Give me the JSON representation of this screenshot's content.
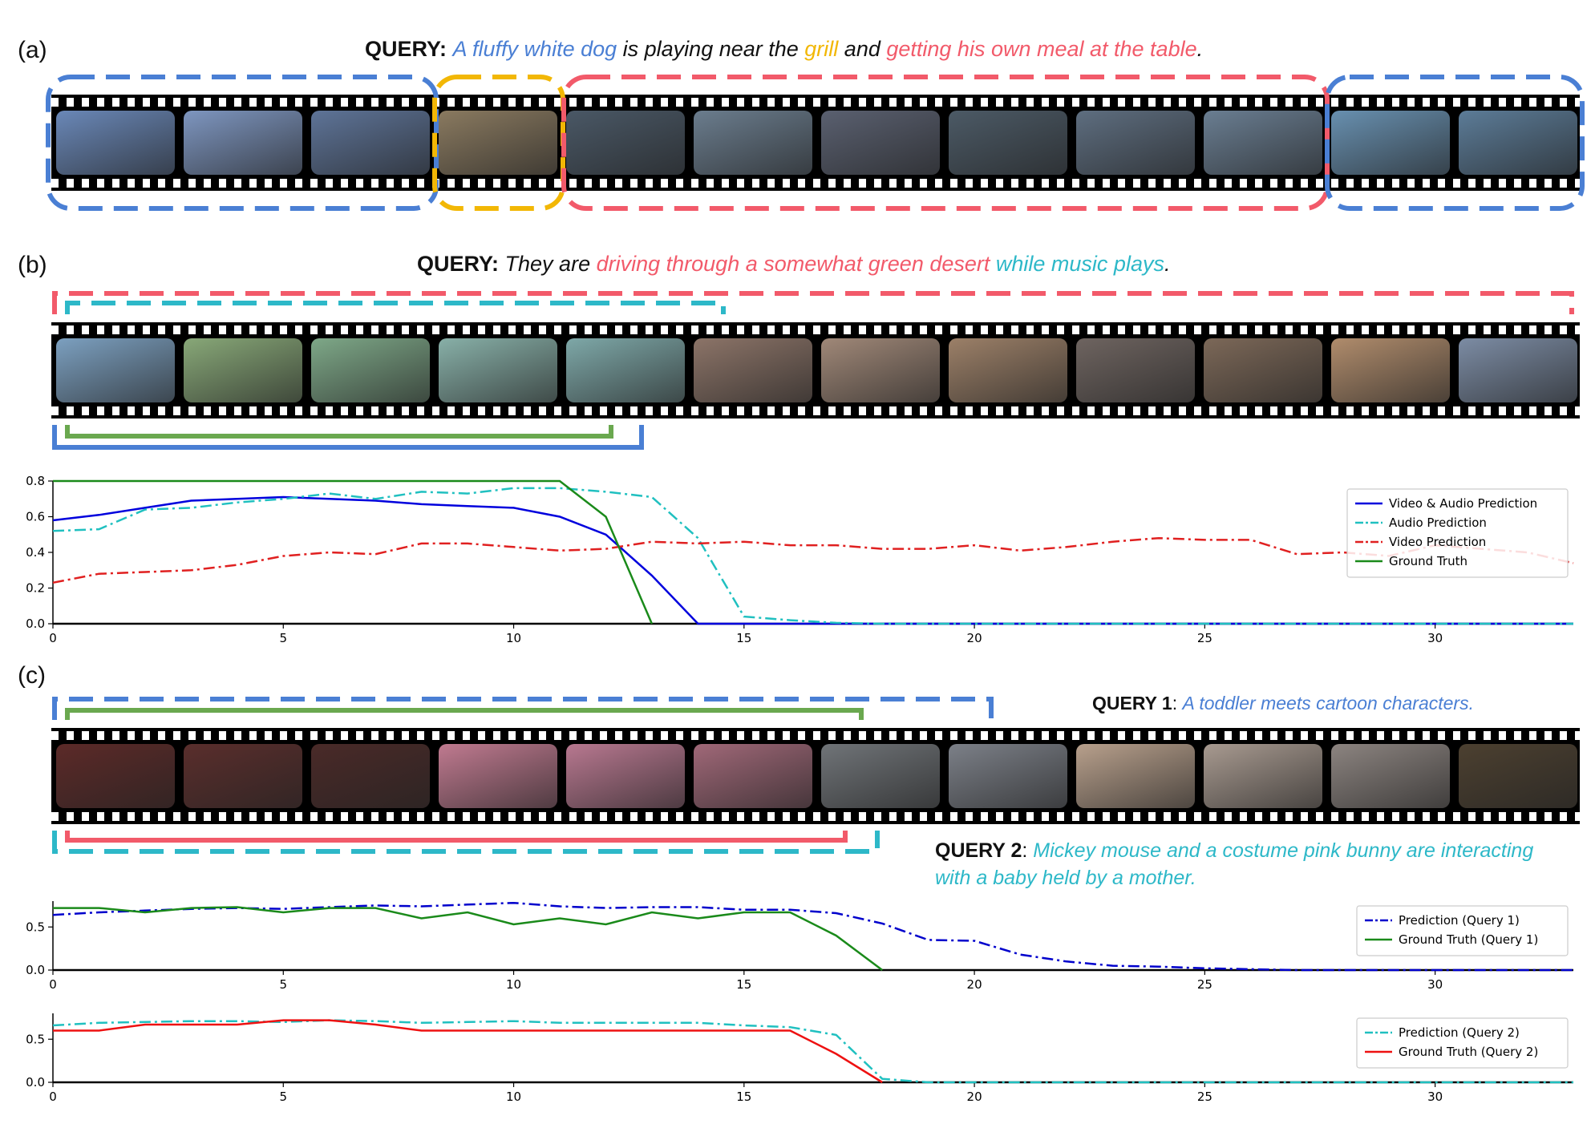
{
  "panels": {
    "a": {
      "label": "(a)",
      "query_prefix": "QUERY:",
      "query_parts": [
        {
          "text": "A fluffy white dog",
          "color": "#4a7fd4"
        },
        {
          "text": " is playing near the ",
          "color": "#111111"
        },
        {
          "text": "grill",
          "color": "#f2b705"
        },
        {
          "text": " and ",
          "color": "#111111"
        },
        {
          "text": "getting his own meal at the table",
          "color": "#f25a6a"
        },
        {
          "text": ".",
          "color": "#111111"
        }
      ]
    },
    "b": {
      "label": "(b)",
      "query_prefix": "QUERY:",
      "query_parts": [
        {
          "text": "They are ",
          "color": "#111111"
        },
        {
          "text": "driving through a somewhat green desert",
          "color": "#f25a6a"
        },
        {
          "text": " while music plays",
          "color": "#2db8c8"
        },
        {
          "text": ".",
          "color": "#111111"
        }
      ]
    },
    "c": {
      "label": "(c)",
      "query1_prefix": "QUERY 1",
      "query1_text": ": ",
      "query1_body": "A toddler meets cartoon characters.",
      "query2_prefix": "QUERY 2",
      "query2_text": ": ",
      "query2_line1": "Mickey mouse and a costume pink bunny are interacting",
      "query2_line2": "with a baby held by a mother."
    }
  },
  "colors": {
    "blue": "#4a7fd4",
    "yellow": "#f2b705",
    "red": "#f25a6a",
    "cyan": "#2db8c8",
    "green": "#6aa84f"
  },
  "frames": {
    "a": [
      "#6a88b8",
      "#7e96c0",
      "#5e7498",
      "#8a7a60",
      "#4a5866",
      "#6b7d8e",
      "#5a6070",
      "#4c5a66",
      "#5e6e80",
      "#6a7e92",
      "#6890b0",
      "#5c7c98"
    ],
    "b": [
      "#7ca0c0",
      "#88a878",
      "#7ea888",
      "#88b0a8",
      "#7ea8a8",
      "#8c7468",
      "#a08878",
      "#9c8068",
      "#6e6460",
      "#7c6858",
      "#b08c6c",
      "#7c8ca4"
    ],
    "c": [
      "#5c2a28",
      "#5a2e2c",
      "#4a2a28",
      "#c07a90",
      "#b87890",
      "#a06878",
      "#707478",
      "#7c8088",
      "#b8a08c",
      "#a89a90",
      "#8c8480",
      "#4c4030"
    ]
  },
  "chart_data": [
    {
      "type": "line",
      "x": [
        0,
        1,
        2,
        3,
        4,
        5,
        6,
        7,
        8,
        9,
        10,
        11,
        12,
        13,
        14,
        15,
        16,
        17,
        18,
        19,
        20,
        21,
        22,
        23,
        24,
        25,
        26,
        27,
        28,
        29,
        30,
        31,
        32,
        33
      ],
      "xticks": [
        0,
        5,
        10,
        15,
        20,
        25,
        30
      ],
      "yticks": [
        "0.0",
        "0.2",
        "0.4",
        "0.6",
        "0.8"
      ],
      "xlim": [
        0,
        33
      ],
      "ylim": [
        0,
        0.8
      ],
      "legend_position": "top-right",
      "series": [
        {
          "name": "Video & Audio Prediction",
          "color": "#0000dd",
          "style": "solid",
          "values": [
            0.58,
            0.61,
            0.65,
            0.69,
            0.7,
            0.71,
            0.7,
            0.69,
            0.67,
            0.66,
            0.65,
            0.6,
            0.5,
            0.27,
            0.0,
            0,
            0,
            0,
            0,
            0,
            0,
            0,
            0,
            0,
            0,
            0,
            0,
            0,
            0,
            0,
            0,
            0,
            0,
            0
          ]
        },
        {
          "name": "Audio Prediction",
          "color": "#20c0c0",
          "style": "dashdot",
          "values": [
            0.52,
            0.53,
            0.64,
            0.65,
            0.68,
            0.7,
            0.73,
            0.7,
            0.74,
            0.73,
            0.76,
            0.76,
            0.74,
            0.71,
            0.48,
            0.04,
            0.02,
            0.005,
            0,
            0,
            0,
            0,
            0,
            0,
            0,
            0,
            0,
            0,
            0,
            0,
            0,
            0,
            0,
            0
          ]
        },
        {
          "name": "Video Prediction",
          "color": "#e02020",
          "style": "dashdot",
          "values": [
            0.23,
            0.28,
            0.29,
            0.3,
            0.33,
            0.38,
            0.4,
            0.39,
            0.45,
            0.45,
            0.43,
            0.41,
            0.42,
            0.46,
            0.45,
            0.46,
            0.44,
            0.44,
            0.42,
            0.42,
            0.44,
            0.41,
            0.43,
            0.46,
            0.48,
            0.47,
            0.47,
            0.39,
            0.4,
            0.38,
            0.44,
            0.42,
            0.4,
            0.34
          ]
        },
        {
          "name": "Ground Truth",
          "color": "#1a8a1a",
          "style": "solid",
          "values": [
            0.8,
            0.8,
            0.8,
            0.8,
            0.8,
            0.8,
            0.8,
            0.8,
            0.8,
            0.8,
            0.8,
            0.8,
            0.6,
            0.0,
            null,
            null,
            null,
            null,
            null,
            null,
            null,
            null,
            null,
            null,
            null,
            null,
            null,
            null,
            null,
            null,
            null,
            null,
            null,
            null
          ]
        }
      ]
    },
    {
      "type": "line",
      "x": [
        0,
        1,
        2,
        3,
        4,
        5,
        6,
        7,
        8,
        9,
        10,
        11,
        12,
        13,
        14,
        15,
        16,
        17,
        18,
        19,
        20,
        21,
        22,
        23,
        24,
        25,
        26,
        27,
        28,
        29,
        30,
        31,
        32,
        33
      ],
      "xticks": [
        0,
        5,
        10,
        15,
        20,
        25,
        30
      ],
      "yticks": [
        "0.0",
        "0.5"
      ],
      "xlim": [
        0,
        33
      ],
      "ylim": [
        0,
        0.8
      ],
      "legend_position": "right",
      "series": [
        {
          "name": "Prediction (Query 1)",
          "color": "#0000cc",
          "style": "dashdot",
          "values": [
            0.64,
            0.67,
            0.69,
            0.71,
            0.72,
            0.71,
            0.73,
            0.75,
            0.74,
            0.76,
            0.78,
            0.74,
            0.72,
            0.73,
            0.73,
            0.7,
            0.7,
            0.66,
            0.54,
            0.35,
            0.34,
            0.18,
            0.1,
            0.05,
            0.04,
            0.02,
            0.01,
            0,
            0,
            0,
            0,
            0,
            0,
            0
          ]
        },
        {
          "name": "Ground Truth (Query 1)",
          "color": "#1a8a1a",
          "style": "solid",
          "values": [
            0.72,
            0.72,
            0.67,
            0.72,
            0.73,
            0.67,
            0.72,
            0.72,
            0.6,
            0.67,
            0.53,
            0.6,
            0.53,
            0.67,
            0.6,
            0.67,
            0.67,
            0.4,
            0.0,
            null,
            null,
            null,
            null,
            null,
            null,
            null,
            null,
            null,
            null,
            null,
            null,
            null,
            null,
            null
          ]
        }
      ]
    },
    {
      "type": "line",
      "x": [
        0,
        1,
        2,
        3,
        4,
        5,
        6,
        7,
        8,
        9,
        10,
        11,
        12,
        13,
        14,
        15,
        16,
        17,
        18,
        19,
        20,
        21,
        22,
        23,
        24,
        25,
        26,
        27,
        28,
        29,
        30,
        31,
        32,
        33
      ],
      "xticks": [
        0,
        5,
        10,
        15,
        20,
        25,
        30
      ],
      "yticks": [
        "0.0",
        "0.5"
      ],
      "xlim": [
        0,
        33
      ],
      "ylim": [
        0,
        0.8
      ],
      "legend_position": "right",
      "series": [
        {
          "name": "Prediction (Query 2)",
          "color": "#20c0c0",
          "style": "dashdot",
          "values": [
            0.66,
            0.69,
            0.7,
            0.71,
            0.71,
            0.7,
            0.72,
            0.71,
            0.69,
            0.7,
            0.71,
            0.69,
            0.69,
            0.69,
            0.69,
            0.66,
            0.64,
            0.55,
            0.04,
            0.0,
            0,
            0,
            0,
            0,
            0,
            0,
            0,
            0,
            0,
            0,
            0,
            0,
            0,
            0
          ]
        },
        {
          "name": "Ground Truth (Query 2)",
          "color": "#ee1111",
          "style": "solid",
          "values": [
            0.6,
            0.6,
            0.67,
            0.67,
            0.67,
            0.72,
            0.72,
            0.67,
            0.6,
            0.6,
            0.6,
            0.6,
            0.6,
            0.6,
            0.6,
            0.6,
            0.6,
            0.33,
            0.0,
            null,
            null,
            null,
            null,
            null,
            null,
            null,
            null,
            null,
            null,
            null,
            null,
            null,
            null,
            null
          ]
        }
      ]
    }
  ]
}
